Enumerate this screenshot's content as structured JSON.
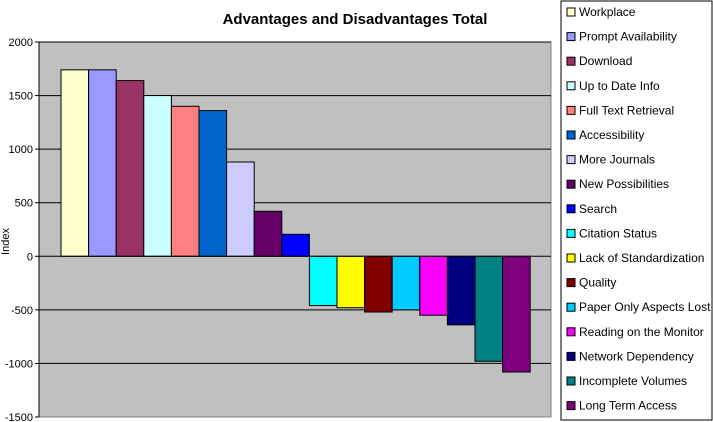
{
  "chart_data": {
    "type": "bar",
    "title": "Advantages and Disadvantages Total",
    "xlabel": "",
    "ylabel": "Index",
    "ylim": [
      -1500,
      2000
    ],
    "yticks": [
      2000,
      1500,
      1000,
      500,
      0,
      -500,
      -1000,
      -1500
    ],
    "grid": true,
    "legend_position": "right",
    "plot_background": "#c0c0c0",
    "series": [
      {
        "name": "Workplace",
        "value": 1740,
        "color": "#ffffcc"
      },
      {
        "name": "Prompt Availability",
        "value": 1740,
        "color": "#9999ff"
      },
      {
        "name": "Download",
        "value": 1640,
        "color": "#993366"
      },
      {
        "name": "Up to Date Info",
        "value": 1500,
        "color": "#ccffff"
      },
      {
        "name": "Full Text Retrieval",
        "value": 1400,
        "color": "#ff8080"
      },
      {
        "name": "Accessibility",
        "value": 1360,
        "color": "#0066cc"
      },
      {
        "name": "More Journals",
        "value": 880,
        "color": "#ccccff"
      },
      {
        "name": "New Possibilities",
        "value": 420,
        "color": "#660066"
      },
      {
        "name": "Search",
        "value": 205,
        "color": "#0000ff"
      },
      {
        "name": "Citation Status",
        "value": -460,
        "color": "#00ffff"
      },
      {
        "name": "Lack of Standardization",
        "value": -480,
        "color": "#ffff00"
      },
      {
        "name": "Quality",
        "value": -520,
        "color": "#800000"
      },
      {
        "name": "Paper Only Aspects Lost",
        "value": -500,
        "color": "#00ccff"
      },
      {
        "name": "Reading on the Monitor",
        "value": -550,
        "color": "#ff00ff"
      },
      {
        "name": "Network Dependency",
        "value": -640,
        "color": "#000080"
      },
      {
        "name": "Incomplete Volumes",
        "value": -980,
        "color": "#008080"
      },
      {
        "name": "Long Term Access",
        "value": -1080,
        "color": "#800080"
      }
    ]
  }
}
